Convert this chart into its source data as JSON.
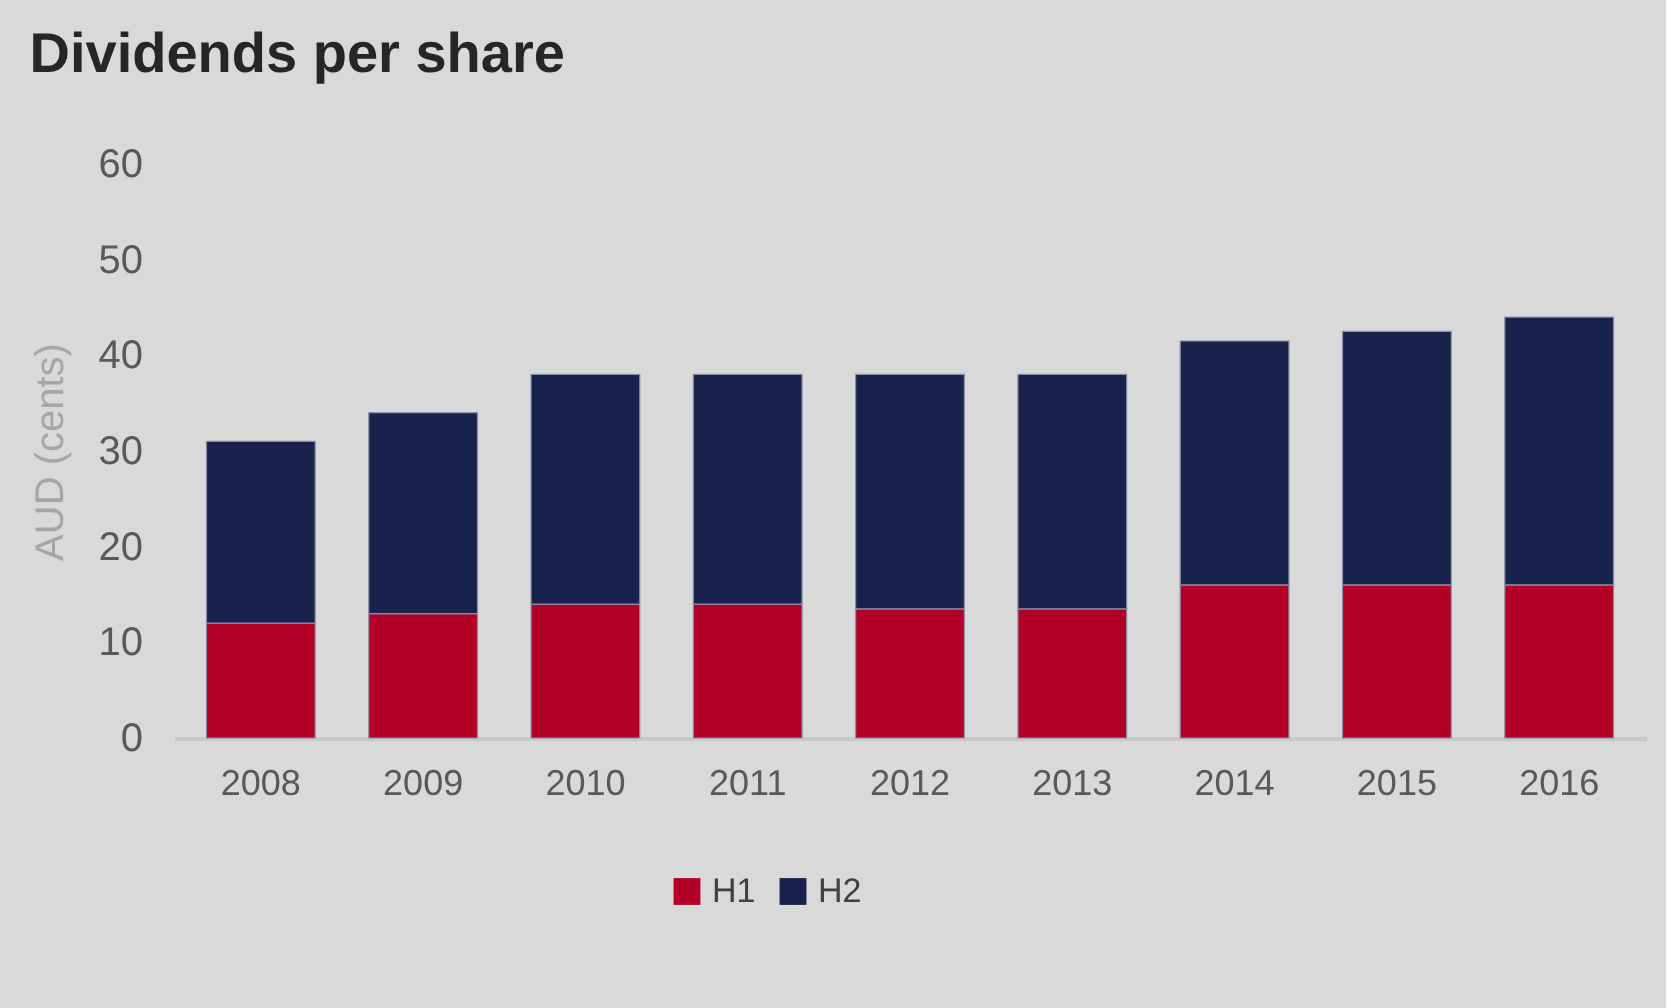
{
  "chart_data": {
    "type": "bar",
    "title": "Dividends per share",
    "ylabel": "AUD (cents)",
    "categories": [
      "2008",
      "2009",
      "2010",
      "2011",
      "2012",
      "2013",
      "2014",
      "2015",
      "2016"
    ],
    "stacked": true,
    "series": [
      {
        "name": "H1",
        "color": "#b30026",
        "values": [
          12,
          13,
          14,
          14,
          13.5,
          13.5,
          16,
          16,
          16
        ]
      },
      {
        "name": "H2",
        "color": "#17234d",
        "values": [
          19,
          21,
          24,
          24,
          24.5,
          24.5,
          25.5,
          26.5,
          28
        ]
      }
    ],
    "ylim": [
      0,
      60
    ],
    "yticks": [
      0,
      10,
      20,
      30,
      40,
      50,
      60
    ],
    "legend": "bottom"
  }
}
